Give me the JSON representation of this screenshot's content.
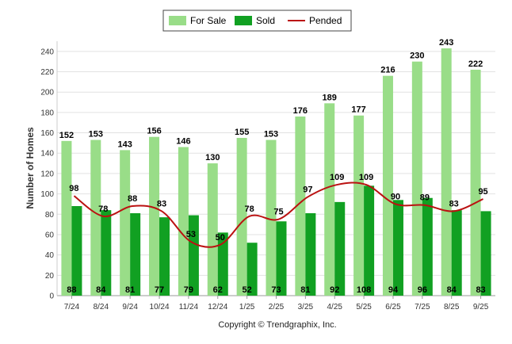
{
  "chart_data": {
    "type": "bar",
    "categories": [
      "7/24",
      "8/24",
      "9/24",
      "10/24",
      "11/24",
      "12/24",
      "1/25",
      "2/25",
      "3/25",
      "4/25",
      "5/25",
      "6/25",
      "7/25",
      "8/25",
      "9/25"
    ],
    "series": [
      {
        "name": "For Sale",
        "kind": "bar",
        "color": "#99dd88",
        "values": [
          152,
          153,
          143,
          156,
          146,
          130,
          155,
          153,
          176,
          189,
          177,
          216,
          230,
          243,
          222
        ]
      },
      {
        "name": "Sold",
        "kind": "bar",
        "color": "#11a022",
        "values": [
          88,
          84,
          81,
          77,
          79,
          62,
          52,
          73,
          81,
          92,
          108,
          94,
          96,
          84,
          83
        ]
      },
      {
        "name": "Pended",
        "kind": "line",
        "color": "#bb1111",
        "values": [
          98,
          78,
          88,
          83,
          53,
          50,
          78,
          75,
          97,
          109,
          109,
          90,
          89,
          83,
          95
        ]
      }
    ],
    "ylabel": "Number of Homes",
    "xlabel": "",
    "ylim": [
      0,
      250
    ],
    "yticks": [
      0,
      20,
      40,
      60,
      80,
      100,
      120,
      140,
      160,
      180,
      200,
      220,
      240
    ],
    "legend_position": "top-center",
    "grid": true
  },
  "footer": {
    "copyright": "Copyright © Trendgraphix, Inc."
  }
}
